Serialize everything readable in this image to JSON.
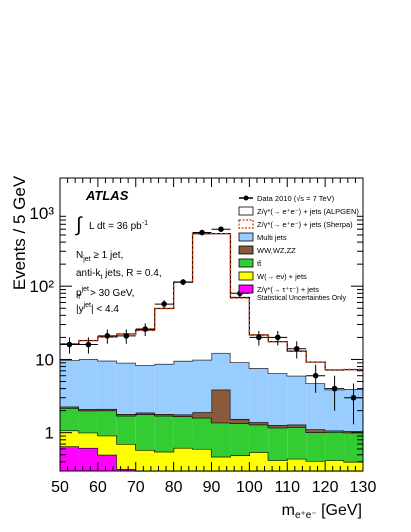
{
  "chart_data": {
    "type": "area",
    "xlabel_base": "m",
    "xlabel_sub": "e⁺e⁻",
    "xlabel_unit": " [GeV]",
    "ylabel": "Events / 5 GeV",
    "xlim": [
      50,
      130
    ],
    "ylim": [
      0.3,
      3000
    ],
    "yscale": "log",
    "x_ticks": [
      50,
      60,
      70,
      80,
      90,
      100,
      110,
      120,
      130
    ],
    "y_ticks": [
      {
        "value": 1,
        "label": "1"
      },
      {
        "value": 10,
        "label": "10"
      },
      {
        "value": 100,
        "label": "10²"
      },
      {
        "value": 1000,
        "label": "10³"
      }
    ],
    "bin_edges": [
      50,
      55,
      60,
      65,
      70,
      75,
      80,
      85,
      90,
      95,
      100,
      105,
      110,
      115,
      120,
      125,
      130
    ],
    "stack": [
      {
        "key": "ztautau",
        "color": "#ff00ff",
        "values": [
          0.65,
          0.62,
          0.5,
          0.32,
          0.3,
          0.3,
          0.3,
          0.3,
          0.3,
          0.3,
          0.3,
          0.3,
          0.3,
          0.3,
          0.3,
          0.3
        ]
      },
      {
        "key": "wenu",
        "color": "#ffff00",
        "values": [
          0.42,
          0.38,
          0.41,
          0.38,
          0.28,
          0.25,
          0.32,
          0.3,
          0.17,
          0.19,
          0.24,
          0.12,
          0.14,
          0.11,
          0.12,
          0.1
        ]
      },
      {
        "key": "ttbar",
        "color": "#33cc33",
        "values": [
          1.1,
          1.0,
          1.1,
          1.0,
          1.2,
          1.15,
          1.05,
          1.0,
          0.9,
          0.85,
          0.75,
          0.75,
          0.75,
          0.6,
          0.6,
          0.6
        ]
      },
      {
        "key": "ww",
        "color": "#8b5a3c",
        "values": [
          0.1,
          0.1,
          0.1,
          0.1,
          0.1,
          0.1,
          0.1,
          0.3,
          2.5,
          0.2,
          0.1,
          0.1,
          0.1,
          0.1,
          0.05,
          0.05
        ]
      },
      {
        "key": "multijets",
        "color": "#99ccff",
        "values": [
          7.5,
          8.0,
          7.5,
          7.2,
          6.5,
          6.9,
          7.8,
          8.0,
          8.4,
          7.6,
          6.2,
          5.2,
          4.7,
          3.6,
          2.8,
          2.9
        ]
      },
      {
        "key": "zee",
        "color": "#ffffff",
        "values": [
          6.5,
          8.0,
          10.7,
          13.3,
          16.9,
          41,
          104,
          510,
          510,
          61,
          14,
          11,
          7,
          4.5,
          3.3,
          3.3
        ]
      }
    ],
    "sherpa_total": [
      16.3,
      18.1,
      20.4,
      22.2,
      24.9,
      49.5,
      113.6,
      520,
      522,
      69,
      21.7,
      17.5,
      12.9,
      9.2,
      7.2,
      7.3
    ],
    "data_x": [
      52.5,
      57.5,
      62.5,
      67.5,
      72.5,
      77.5,
      82.5,
      87.5,
      92.5,
      97.5,
      102.5,
      107.5,
      112.5,
      117.5,
      122.5,
      127.5
    ],
    "data_y": [
      16,
      16,
      21,
      21,
      26,
      57,
      114,
      540,
      600,
      80,
      20,
      20,
      14,
      6,
      4,
      3
    ],
    "data_err": [
      4,
      4,
      4.6,
      4.6,
      5.1,
      7.5,
      10.7,
      23,
      24.5,
      9,
      4.5,
      4.5,
      3.7,
      2.5,
      2,
      1.7
    ],
    "legend": [
      {
        "key": "data",
        "label": "Data 2010 (√s = 7 TeV)",
        "style": "data"
      },
      {
        "key": "zee",
        "label": "Z/γ*(→ e⁺e⁻) + jets (ALPGEN)",
        "style": "box"
      },
      {
        "key": "sherpa",
        "label": "Z/γ*(→ e⁺e⁻) + jets (Sherpa)",
        "style": "dashed"
      },
      {
        "key": "multijets",
        "label": "Multi jets",
        "style": "box"
      },
      {
        "key": "ww",
        "label": "WW,WZ,ZZ",
        "style": "box"
      },
      {
        "key": "ttbar",
        "label": "tt̄",
        "style": "box"
      },
      {
        "key": "wenu",
        "label": "W(→ eν) + jets",
        "style": "box"
      },
      {
        "key": "ztautau",
        "label": "Z/γ*(→ τ⁺τ⁻) + jets",
        "style": "box"
      }
    ],
    "colors": {
      "sherpa": "#cc3300",
      "zee_edge": "#000000"
    },
    "annotations": {
      "atlas": "ATLAS",
      "lumi_int": "∫",
      "lumi": "L dt = 36 pb",
      "lumi_exp": "-1",
      "njet_base": "N",
      "njet_sub": "jet",
      "njet_rest": " ≥ 1 jet,",
      "algo": "anti-k",
      "algo_sub": "t",
      "algo_rest": " jets, R = 0.4,",
      "pt_base": "p",
      "pt_sub": "T",
      "pt_sup": "jet",
      "pt_rest": " > 30 GeV,",
      "y_pre": "|y",
      "y_sup": "jet",
      "y_rest": "| < 4.4",
      "stat_note": "Statistical Uncertainties Only"
    }
  }
}
